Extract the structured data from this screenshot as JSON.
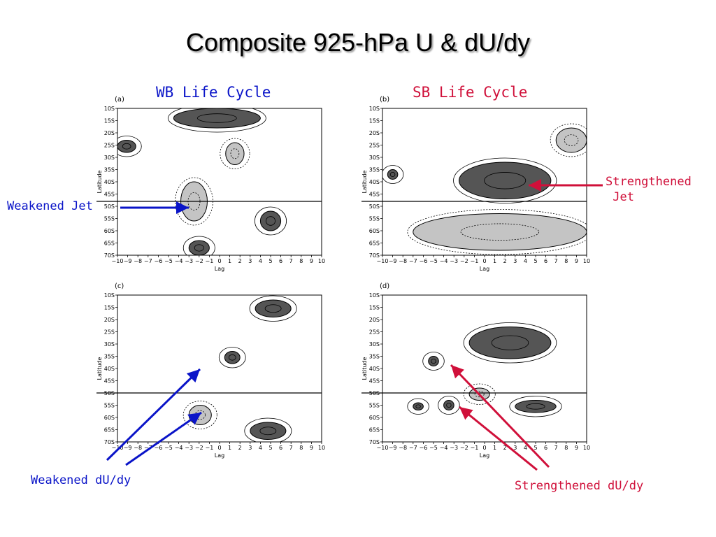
{
  "title": "Composite 925-hPa U & dU/dy",
  "annotations": {
    "weakened_jet": "Weakened Jet",
    "strengthened_jet": "Strengthened\n Jet",
    "weakened_dudy": "Weakened dU/dy",
    "strengthened_dudy": "Strengthened dU/dy"
  },
  "colors": {
    "blue": "#0a14c8",
    "red": "#d0103a",
    "dark_shade": "#555555",
    "light_shade": "#c4c4c4"
  },
  "chart_data": [
    {
      "type": "heatmap",
      "panel": "(a)",
      "title": "WB Life Cycle",
      "xlabel": "Lag",
      "ylabel": "Latitude",
      "x": [
        -10,
        -9,
        -8,
        -7,
        -6,
        -5,
        -4,
        -3,
        -2,
        -1,
        0,
        1,
        2,
        3,
        4,
        5,
        6,
        7,
        8,
        9,
        10
      ],
      "y_tick_labels": [
        "10S",
        "15S",
        "20S",
        "25S",
        "30S",
        "35S",
        "40S",
        "45S",
        "50S",
        "55S",
        "60S",
        "65S",
        "70S"
      ],
      "reference_line_lat": "48S",
      "features": [
        {
          "kind": "positive",
          "lag": [
            -3.8,
            -1.2
          ],
          "lat": [
            40,
            56
          ]
        },
        {
          "kind": "positive",
          "lag": [
            0.6,
            2.4
          ],
          "lat": [
            24,
            33
          ]
        },
        {
          "kind": "negative",
          "lag": [
            -10,
            -8.2
          ],
          "lat": [
            23,
            28
          ]
        },
        {
          "kind": "negative",
          "lag": [
            -4.5,
            4
          ],
          "lat": [
            10,
            18
          ]
        },
        {
          "kind": "negative",
          "lag": [
            4,
            6
          ],
          "lat": [
            52,
            60
          ]
        },
        {
          "kind": "negative",
          "lag": [
            -3,
            -1
          ],
          "lat": [
            64,
            70
          ]
        }
      ]
    },
    {
      "type": "heatmap",
      "panel": "(b)",
      "title": "SB Life Cycle",
      "xlabel": "Lag",
      "ylabel": "Latitude",
      "x": [
        -10,
        -9,
        -8,
        -7,
        -6,
        -5,
        -4,
        -3,
        -2,
        -1,
        0,
        1,
        2,
        3,
        4,
        5,
        6,
        7,
        8,
        9,
        10
      ],
      "y_tick_labels": [
        "10S",
        "15S",
        "20S",
        "25S",
        "30S",
        "35S",
        "40S",
        "45S",
        "50S",
        "55S",
        "60S",
        "65S",
        "70S"
      ],
      "reference_line_lat": "48S",
      "features": [
        {
          "kind": "negative",
          "lag": [
            -2.5,
            6.5
          ],
          "lat": [
            32,
            47
          ]
        },
        {
          "kind": "negative",
          "lag": [
            -9.5,
            -8.5
          ],
          "lat": [
            35,
            39
          ]
        },
        {
          "kind": "positive",
          "lag": [
            -7,
            10
          ],
          "lat": [
            53,
            68
          ]
        },
        {
          "kind": "positive",
          "lag": [
            7,
            10
          ],
          "lat": [
            18,
            28
          ]
        }
      ]
    },
    {
      "type": "heatmap",
      "panel": "(c)",
      "title": "",
      "xlabel": "Lag",
      "ylabel": "Latitude",
      "x": [
        -10,
        -9,
        -8,
        -7,
        -6,
        -5,
        -4,
        -3,
        -2,
        -1,
        0,
        1,
        2,
        3,
        4,
        5,
        6,
        7,
        8,
        9,
        10
      ],
      "y_tick_labels": [
        "10S",
        "15S",
        "20S",
        "25S",
        "30S",
        "35S",
        "40S",
        "45S",
        "50S",
        "55S",
        "60S",
        "65S",
        "70S"
      ],
      "reference_line_lat": "50S",
      "features": [
        {
          "kind": "positive",
          "lag": [
            -3,
            -0.8
          ],
          "lat": [
            55,
            63
          ]
        },
        {
          "kind": "negative",
          "lag": [
            3.5,
            7
          ],
          "lat": [
            12,
            19
          ]
        },
        {
          "kind": "negative",
          "lag": [
            3,
            6.5
          ],
          "lat": [
            62,
            69
          ]
        },
        {
          "kind": "negative",
          "lag": [
            0.5,
            2
          ],
          "lat": [
            33,
            38
          ]
        }
      ]
    },
    {
      "type": "heatmap",
      "panel": "(d)",
      "title": "",
      "xlabel": "Lag",
      "ylabel": "Latitude",
      "x": [
        -10,
        -9,
        -8,
        -7,
        -6,
        -5,
        -4,
        -3,
        -2,
        -1,
        0,
        1,
        2,
        3,
        4,
        5,
        6,
        7,
        8,
        9,
        10
      ],
      "y_tick_labels": [
        "10S",
        "15S",
        "20S",
        "25S",
        "30S",
        "35S",
        "40S",
        "45S",
        "50S",
        "55S",
        "60S",
        "65S",
        "70S"
      ],
      "reference_line_lat": "50S",
      "features": [
        {
          "kind": "negative",
          "lag": [
            -1.5,
            6.5
          ],
          "lat": [
            23,
            36
          ]
        },
        {
          "kind": "negative",
          "lag": [
            -5.5,
            -4.5
          ],
          "lat": [
            35,
            39
          ]
        },
        {
          "kind": "negative",
          "lag": [
            -4,
            -3
          ],
          "lat": [
            53,
            57
          ]
        },
        {
          "kind": "negative",
          "lag": [
            -7,
            -6
          ],
          "lat": [
            54,
            57
          ]
        },
        {
          "kind": "negative",
          "lag": [
            3,
            7
          ],
          "lat": [
            53,
            58
          ]
        },
        {
          "kind": "positive",
          "lag": [
            -1.5,
            0.5
          ],
          "lat": [
            48,
            53
          ]
        }
      ]
    }
  ]
}
